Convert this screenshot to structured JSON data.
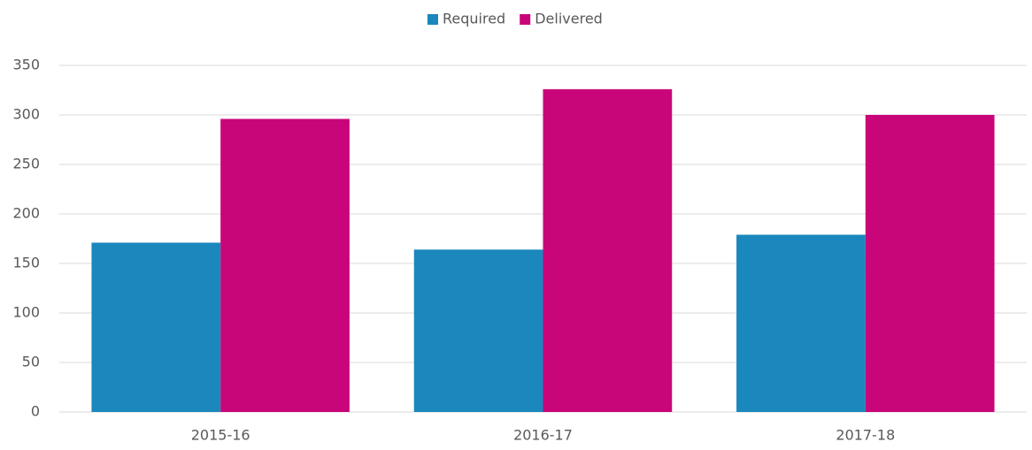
{
  "chart_data": {
    "type": "bar",
    "categories": [
      "2015-16",
      "2016-17",
      "2017-18"
    ],
    "series": [
      {
        "name": "Required",
        "color": "#1a87bd",
        "values": [
          171,
          164,
          179
        ]
      },
      {
        "name": "Delivered",
        "color": "#c9057a",
        "values": [
          296,
          326,
          300
        ]
      }
    ],
    "ylim": [
      0,
      350
    ],
    "yticks": [
      0,
      50,
      100,
      150,
      200,
      250,
      300,
      350
    ],
    "grid": true,
    "legend": "top"
  }
}
